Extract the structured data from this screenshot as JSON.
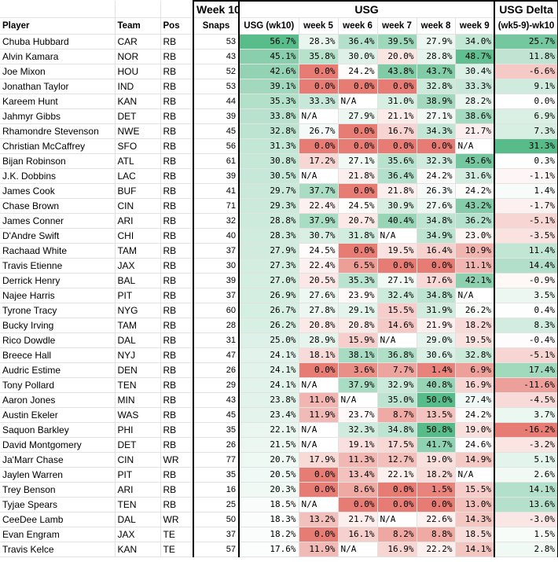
{
  "header": {
    "week10": "Week 10",
    "usg": "USG",
    "usg_delta": "USG Delta",
    "col_player": "Player",
    "col_team": "Team",
    "col_pos": "Pos",
    "col_snaps": "Snaps",
    "col_usg_wk10": "USG (wk10)",
    "col_week5": "week 5",
    "col_week6": "week 6",
    "col_week7": "week 7",
    "col_week8": "week 8",
    "col_week9": "week 9",
    "col_delta": "(wk5-9)-wk10"
  },
  "rows": [
    {
      "player": "Chuba Hubbard",
      "team": "CAR",
      "pos": "RB",
      "snaps": "53",
      "usg10": "56.7%",
      "w5": "28.3%",
      "w6": "36.4%",
      "w7": "39.5%",
      "w8": "27.9%",
      "w9": "34.0%",
      "delta": "25.7%"
    },
    {
      "player": "Alvin Kamara",
      "team": "NOR",
      "pos": "RB",
      "snaps": "43",
      "usg10": "45.1%",
      "w5": "35.8%",
      "w6": "30.0%",
      "w7": "20.0%",
      "w8": "28.8%",
      "w9": "48.7%",
      "delta": "11.8%"
    },
    {
      "player": "Joe Mixon",
      "team": "HOU",
      "pos": "RB",
      "snaps": "52",
      "usg10": "42.6%",
      "w5": "0.0%",
      "w6": "24.2%",
      "w7": "43.8%",
      "w8": "43.7%",
      "w9": "30.4%",
      "delta": "-6.6%"
    },
    {
      "player": "Jonathan Taylor",
      "team": "IND",
      "pos": "RB",
      "snaps": "53",
      "usg10": "39.1%",
      "w5": "0.0%",
      "w6": "0.0%",
      "w7": "0.0%",
      "w8": "32.8%",
      "w9": "33.3%",
      "delta": "9.1%"
    },
    {
      "player": "Kareem Hunt",
      "team": "KAN",
      "pos": "RB",
      "snaps": "44",
      "usg10": "35.3%",
      "w5": "33.3%",
      "w6": "N/A",
      "w7": "31.0%",
      "w8": "38.9%",
      "w9": "28.2%",
      "delta": "0.0%"
    },
    {
      "player": "Jahmyr Gibbs",
      "team": "DET",
      "pos": "RB",
      "snaps": "39",
      "usg10": "33.8%",
      "w5": "N/A",
      "w6": "27.9%",
      "w7": "21.1%",
      "w8": "27.1%",
      "w9": "38.6%",
      "delta": "6.9%"
    },
    {
      "player": "Rhamondre Stevenson",
      "team": "NWE",
      "pos": "RB",
      "snaps": "45",
      "usg10": "32.8%",
      "w5": "26.7%",
      "w6": "0.0%",
      "w7": "16.7%",
      "w8": "34.3%",
      "w9": "21.7%",
      "delta": "7.3%"
    },
    {
      "player": "Christian McCaffrey",
      "team": "SFO",
      "pos": "RB",
      "snaps": "56",
      "usg10": "31.3%",
      "w5": "0.0%",
      "w6": "0.0%",
      "w7": "0.0%",
      "w8": "0.0%",
      "w9": "N/A",
      "delta": "31.3%"
    },
    {
      "player": "Bijan Robinson",
      "team": "ATL",
      "pos": "RB",
      "snaps": "61",
      "usg10": "30.8%",
      "w5": "17.2%",
      "w6": "27.1%",
      "w7": "35.6%",
      "w8": "32.3%",
      "w9": "45.6%",
      "delta": "0.3%"
    },
    {
      "player": "J.K. Dobbins",
      "team": "LAC",
      "pos": "RB",
      "snaps": "39",
      "usg10": "30.5%",
      "w5": "N/A",
      "w6": "21.8%",
      "w7": "36.4%",
      "w8": "24.2%",
      "w9": "31.6%",
      "delta": "-1.1%"
    },
    {
      "player": "James Cook",
      "team": "BUF",
      "pos": "RB",
      "snaps": "41",
      "usg10": "29.7%",
      "w5": "37.7%",
      "w6": "0.0%",
      "w7": "21.8%",
      "w8": "26.3%",
      "w9": "24.2%",
      "delta": "1.4%"
    },
    {
      "player": "Chase Brown",
      "team": "CIN",
      "pos": "RB",
      "snaps": "71",
      "usg10": "29.3%",
      "w5": "22.4%",
      "w6": "24.5%",
      "w7": "30.9%",
      "w8": "27.6%",
      "w9": "43.2%",
      "delta": "-1.7%"
    },
    {
      "player": "James Conner",
      "team": "ARI",
      "pos": "RB",
      "snaps": "32",
      "usg10": "28.8%",
      "w5": "37.9%",
      "w6": "20.7%",
      "w7": "40.4%",
      "w8": "34.8%",
      "w9": "36.2%",
      "delta": "-5.1%"
    },
    {
      "player": "D'Andre Swift",
      "team": "CHI",
      "pos": "RB",
      "snaps": "40",
      "usg10": "28.3%",
      "w5": "30.7%",
      "w6": "31.8%",
      "w7": "N/A",
      "w8": "34.9%",
      "w9": "23.0%",
      "delta": "-3.5%"
    },
    {
      "player": "Rachaad White",
      "team": "TAM",
      "pos": "RB",
      "snaps": "37",
      "usg10": "27.9%",
      "w5": "24.5%",
      "w6": "0.0%",
      "w7": "19.5%",
      "w8": "16.4%",
      "w9": "10.9%",
      "delta": "11.4%"
    },
    {
      "player": "Travis Etienne",
      "team": "JAX",
      "pos": "RB",
      "snaps": "30",
      "usg10": "27.3%",
      "w5": "22.4%",
      "w6": "6.5%",
      "w7": "0.0%",
      "w8": "0.0%",
      "w9": "11.1%",
      "delta": "14.4%"
    },
    {
      "player": "Derrick Henry",
      "team": "BAL",
      "pos": "RB",
      "snaps": "39",
      "usg10": "27.0%",
      "w5": "20.5%",
      "w6": "35.3%",
      "w7": "27.1%",
      "w8": "17.6%",
      "w9": "42.1%",
      "delta": "-0.9%"
    },
    {
      "player": "Najee Harris",
      "team": "PIT",
      "pos": "RB",
      "snaps": "37",
      "usg10": "26.9%",
      "w5": "27.6%",
      "w6": "23.9%",
      "w7": "32.4%",
      "w8": "34.8%",
      "w9": "N/A",
      "delta": "3.5%"
    },
    {
      "player": "Tyrone Tracy",
      "team": "NYG",
      "pos": "RB",
      "snaps": "60",
      "usg10": "26.7%",
      "w5": "27.8%",
      "w6": "29.1%",
      "w7": "15.5%",
      "w8": "31.9%",
      "w9": "26.2%",
      "delta": "0.4%"
    },
    {
      "player": "Bucky Irving",
      "team": "TAM",
      "pos": "RB",
      "snaps": "28",
      "usg10": "26.2%",
      "w5": "20.8%",
      "w6": "20.8%",
      "w7": "14.6%",
      "w8": "21.9%",
      "w9": "18.2%",
      "delta": "8.3%"
    },
    {
      "player": "Rico Dowdle",
      "team": "DAL",
      "pos": "RB",
      "snaps": "31",
      "usg10": "25.0%",
      "w5": "28.9%",
      "w6": "15.9%",
      "w7": "N/A",
      "w8": "29.0%",
      "w9": "19.5%",
      "delta": "-0.4%"
    },
    {
      "player": "Breece Hall",
      "team": "NYJ",
      "pos": "RB",
      "snaps": "47",
      "usg10": "24.1%",
      "w5": "18.1%",
      "w6": "38.1%",
      "w7": "36.8%",
      "w8": "30.6%",
      "w9": "32.8%",
      "delta": "-5.1%"
    },
    {
      "player": "Audric Estime",
      "team": "DEN",
      "pos": "RB",
      "snaps": "26",
      "usg10": "24.1%",
      "w5": "0.0%",
      "w6": "3.6%",
      "w7": "7.7%",
      "w8": "1.4%",
      "w9": "6.9%",
      "delta": "17.4%"
    },
    {
      "player": "Tony Pollard",
      "team": "TEN",
      "pos": "RB",
      "snaps": "29",
      "usg10": "24.1%",
      "w5": "N/A",
      "w6": "37.9%",
      "w7": "32.9%",
      "w8": "40.8%",
      "w9": "16.9%",
      "delta": "-11.6%"
    },
    {
      "player": "Aaron Jones",
      "team": "MIN",
      "pos": "RB",
      "snaps": "43",
      "usg10": "23.8%",
      "w5": "11.0%",
      "w6": "N/A",
      "w7": "35.0%",
      "w8": "50.0%",
      "w9": "27.4%",
      "delta": "-4.5%"
    },
    {
      "player": "Austin Ekeler",
      "team": "WAS",
      "pos": "RB",
      "snaps": "45",
      "usg10": "23.4%",
      "w5": "11.9%",
      "w6": "23.7%",
      "w7": "8.7%",
      "w8": "13.5%",
      "w9": "24.2%",
      "delta": "3.7%"
    },
    {
      "player": "Saquon Barkley",
      "team": "PHI",
      "pos": "RB",
      "snaps": "35",
      "usg10": "22.1%",
      "w5": "N/A",
      "w6": "32.3%",
      "w7": "34.8%",
      "w8": "50.8%",
      "w9": "19.0%",
      "delta": "-16.2%"
    },
    {
      "player": "David Montgomery",
      "team": "DET",
      "pos": "RB",
      "snaps": "26",
      "usg10": "21.5%",
      "w5": "N/A",
      "w6": "19.1%",
      "w7": "17.5%",
      "w8": "41.7%",
      "w9": "24.6%",
      "delta": "-3.2%"
    },
    {
      "player": "Ja'Marr Chase",
      "team": "CIN",
      "pos": "WR",
      "snaps": "77",
      "usg10": "20.7%",
      "w5": "17.9%",
      "w6": "11.3%",
      "w7": "12.7%",
      "w8": "19.0%",
      "w9": "14.9%",
      "delta": "5.1%"
    },
    {
      "player": "Jaylen Warren",
      "team": "PIT",
      "pos": "RB",
      "snaps": "35",
      "usg10": "20.5%",
      "w5": "0.0%",
      "w6": "13.4%",
      "w7": "22.1%",
      "w8": "18.2%",
      "w9": "N/A",
      "delta": "2.6%"
    },
    {
      "player": "Trey Benson",
      "team": "ARI",
      "pos": "RB",
      "snaps": "16",
      "usg10": "20.3%",
      "w5": "0.0%",
      "w6": "8.6%",
      "w7": "0.0%",
      "w8": "1.5%",
      "w9": "15.5%",
      "delta": "14.1%"
    },
    {
      "player": "Tyjae Spears",
      "team": "TEN",
      "pos": "RB",
      "snaps": "25",
      "usg10": "18.5%",
      "w5": "N/A",
      "w6": "0.0%",
      "w7": "0.0%",
      "w8": "0.0%",
      "w9": "13.0%",
      "delta": "13.6%"
    },
    {
      "player": "CeeDee Lamb",
      "team": "DAL",
      "pos": "WR",
      "snaps": "50",
      "usg10": "18.3%",
      "w5": "13.2%",
      "w6": "21.7%",
      "w7": "N/A",
      "w8": "22.6%",
      "w9": "14.3%",
      "delta": "-3.0%"
    },
    {
      "player": "Evan Engram",
      "team": "JAX",
      "pos": "TE",
      "snaps": "37",
      "usg10": "18.2%",
      "w5": "0.0%",
      "w6": "16.1%",
      "w7": "8.2%",
      "w8": "8.8%",
      "w9": "18.5%",
      "delta": "1.5%"
    },
    {
      "player": "Travis Kelce",
      "team": "KAN",
      "pos": "TE",
      "snaps": "57",
      "usg10": "17.6%",
      "w5": "11.9%",
      "w6": "N/A",
      "w7": "16.9%",
      "w8": "22.2%",
      "w9": "14.1%",
      "delta": "2.8%"
    }
  ],
  "colors": {
    "green": "#57bb8a",
    "white": "#ffffff",
    "red": "#e67c73",
    "na_bg": "#ffffff"
  }
}
